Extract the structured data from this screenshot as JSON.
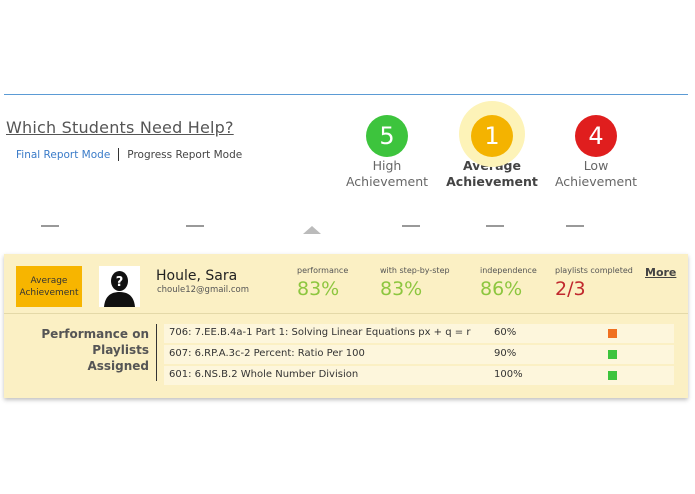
{
  "header": {
    "title": "Which Students Need Help?",
    "modes": {
      "final": "Final Report Mode",
      "progress": "Progress Report Mode"
    }
  },
  "achievements": [
    {
      "count": "5",
      "label_line1": "High",
      "label_line2": "Achievement",
      "color": "#3dc43d",
      "selected": false
    },
    {
      "count": "1",
      "label_line1": "Average",
      "label_line2": "Achievement",
      "color": "#f4b300",
      "selected": true
    },
    {
      "count": "4",
      "label_line1": "Low",
      "label_line2": "Achievement",
      "color": "#e01e1e",
      "selected": false
    }
  ],
  "student": {
    "badge": "Average Achievement",
    "name": "Houle, Sara",
    "email": "choule12@gmail.com",
    "stats": [
      {
        "label": "performance",
        "value": "83%",
        "color": "#8dc63f"
      },
      {
        "label": "with step-by-step",
        "value": "83%",
        "color": "#8dc63f"
      },
      {
        "label": "independence",
        "value": "86%",
        "color": "#8dc63f"
      },
      {
        "label": "playlists completed",
        "value": "2/3",
        "color": "#c0282d"
      }
    ],
    "more": "More"
  },
  "playlists": {
    "title": "Performance on Playlists Assigned",
    "rows": [
      {
        "name": "706: 7.EE.B.4a-1 Part 1: Solving Linear Equations px + q = r",
        "percent": "60%",
        "status_color": "#f07020"
      },
      {
        "name": "607: 6.RP.A.3c-2 Percent: Ratio Per 100",
        "percent": "90%",
        "status_color": "#3dc43d"
      },
      {
        "name": "601: 6.NS.B.2 Whole Number Division",
        "percent": "100%",
        "status_color": "#3dc43d"
      }
    ]
  }
}
